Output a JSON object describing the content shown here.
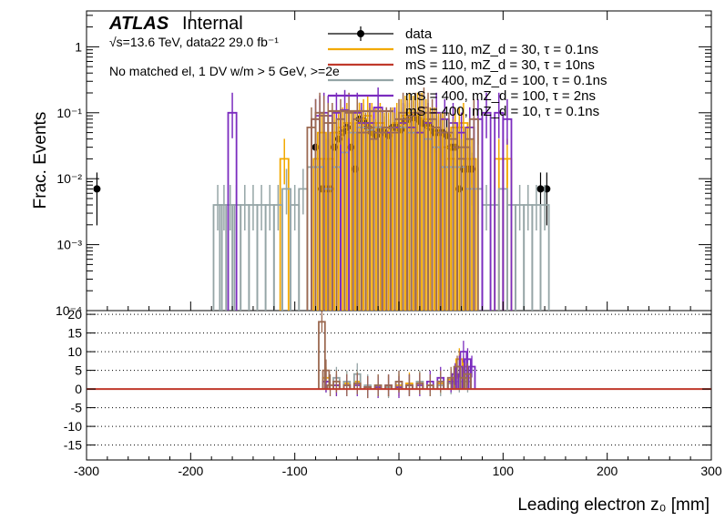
{
  "colors": {
    "data": "#000000",
    "mS110_mZd30_tau0p1": "#f2a900",
    "mS110_mZd30_tau10": "#c0392b",
    "mS400_mZd100_tau0p1": "#95a5a6",
    "mS400_mZd100_tau2": "#7b2cbf",
    "mS400_mZd10_tau0p1": "#9c6a52"
  },
  "annotations": {
    "atlas": "ATLAS",
    "internal": "Internal",
    "energy": "√s=13.6 TeV, data22 29.0 fb⁻¹",
    "selection": "No matched el, 1 DV w/m > 5 GeV, >=2e"
  },
  "chart_data": [
    {
      "type": "line",
      "panel": "main",
      "ylabel": "Frac. Events",
      "yscale": "log",
      "xlim": [
        -300,
        300
      ],
      "ylim": [
        0.0001,
        3.5
      ],
      "y_ticks": [
        "10⁻⁴",
        "10⁻³",
        "10⁻²",
        "10⁻¹",
        "1"
      ],
      "legend_position": "top-right",
      "series": [
        {
          "name": "data",
          "key": "data",
          "style": "points",
          "x": [
            -290,
            -80,
            -74,
            -70,
            -66,
            -62,
            -58,
            -54,
            -50,
            -46,
            -42,
            -38,
            -34,
            -30,
            -26,
            -22,
            -18,
            -14,
            -10,
            -6,
            -2,
            2,
            6,
            10,
            14,
            18,
            22,
            26,
            30,
            34,
            38,
            42,
            46,
            50,
            54,
            58,
            62,
            66,
            70,
            136,
            142
          ],
          "y": [
            0.007,
            0.03,
            0.007,
            0.007,
            0.007,
            0.03,
            0.04,
            0.05,
            0.06,
            0.03,
            0.014,
            0.08,
            0.075,
            0.06,
            0.05,
            0.045,
            0.055,
            0.05,
            0.045,
            0.06,
            0.06,
            0.055,
            0.075,
            0.08,
            0.085,
            0.08,
            0.07,
            0.065,
            0.06,
            0.05,
            0.05,
            0.05,
            0.045,
            0.03,
            0.03,
            0.007,
            0.014,
            0.014,
            0.014,
            0.007,
            0.007
          ]
        },
        {
          "name": "mS = 110, mZ_d = 30, τ = 0.1ns",
          "key": "mS110_mZd30_tau0p1",
          "style": "hist",
          "x": [
            -110,
            -78,
            -74,
            -70,
            -66,
            -62,
            -58,
            -54,
            -50,
            -46,
            -42,
            -38,
            -34,
            -30,
            -26,
            -22,
            -18,
            -14,
            -10,
            -6,
            -2,
            2,
            6,
            10,
            14,
            18,
            22,
            26,
            30,
            34,
            38,
            42,
            46,
            50,
            54,
            58,
            62,
            66,
            70,
            96,
            100,
            104
          ],
          "y": [
            0.02,
            0.02,
            0.05,
            0.02,
            0.02,
            0.05,
            0.05,
            0.06,
            0.07,
            0.05,
            0.05,
            0.07,
            0.08,
            0.09,
            0.07,
            0.06,
            0.07,
            0.05,
            0.05,
            0.06,
            0.07,
            0.08,
            0.09,
            0.1,
            0.09,
            0.1,
            0.1,
            0.08,
            0.06,
            0.06,
            0.05,
            0.05,
            0.03,
            0.02,
            0.06,
            0.06,
            0.07,
            0.02,
            0.02,
            0.02,
            0.02,
            0.02
          ]
        },
        {
          "name": "mS = 110, mZ_d = 30, τ = 10ns",
          "key": "mS110_mZd30_tau10",
          "style": "hist",
          "x": [],
          "y": []
        },
        {
          "name": "mS = 400, mZ_d = 100, τ = 0.1ns",
          "key": "mS400_mZd100_tau0p1",
          "style": "hist",
          "x": [
            -174,
            -168,
            -162,
            -156,
            -148,
            -140,
            -132,
            -124,
            -116,
            -108,
            -100,
            -92,
            -84,
            -76,
            -68,
            -60,
            -52,
            -44,
            -36,
            -28,
            -20,
            -12,
            -4,
            4,
            12,
            20,
            28,
            36,
            44,
            52,
            60,
            68,
            76,
            84,
            92,
            100,
            108,
            116,
            124,
            132,
            140
          ],
          "y": [
            0.004,
            0.004,
            0.004,
            0.004,
            0.004,
            0.004,
            0.004,
            0.004,
            0.004,
            0.007,
            0.004,
            0.007,
            0.015,
            0.015,
            0.007,
            0.015,
            0.025,
            0.05,
            0.06,
            0.055,
            0.06,
            0.06,
            0.06,
            0.06,
            0.05,
            0.05,
            0.04,
            0.03,
            0.015,
            0.015,
            0.015,
            0.007,
            0.007,
            0.004,
            0.004,
            0.007,
            0.004,
            0.004,
            0.004,
            0.004,
            0.004
          ]
        },
        {
          "name": "mS = 400, mZ_d = 100, τ = 2ns",
          "key": "mS400_mZd100_tau2",
          "style": "hist",
          "x": [
            -160,
            -80,
            -76,
            -72,
            -68,
            -60,
            -52,
            -40,
            -36,
            -28,
            -20,
            -12,
            -4,
            4,
            12,
            20,
            28,
            36,
            44,
            52,
            60,
            68,
            76,
            84,
            96,
            104
          ],
          "y": [
            0.1,
            0.08,
            0.09,
            0.1,
            0.09,
            0.1,
            0.11,
            0.1,
            0.07,
            0.07,
            0.12,
            0.05,
            0.06,
            0.07,
            0.06,
            0.05,
            0.07,
            0.1,
            0.08,
            0.07,
            0.05,
            0.06,
            0.08,
            0.1,
            0.1,
            0.08
          ]
        },
        {
          "name": "mS = 400, mZ_d = 10, τ = 0.1ns",
          "key": "mS400_mZd10_tau0p1",
          "style": "hist",
          "x": [
            -84,
            -80,
            -76,
            -72,
            -68,
            -64,
            -56,
            -48,
            -40,
            -36,
            -32,
            -28,
            -24,
            -20,
            -16,
            -12,
            -8,
            -4,
            0,
            4,
            8,
            12,
            16,
            20,
            24,
            28,
            32,
            36,
            40,
            44,
            48,
            52,
            56,
            60,
            64,
            68,
            72
          ],
          "y": [
            0.06,
            0.08,
            0.1,
            0.09,
            0.07,
            0.07,
            0.08,
            0.1,
            0.08,
            0.05,
            0.05,
            0.06,
            0.04,
            0.05,
            0.05,
            0.06,
            0.06,
            0.05,
            0.08,
            0.1,
            0.08,
            0.09,
            0.1,
            0.1,
            0.12,
            0.1,
            0.08,
            0.06,
            0.05,
            0.05,
            0.05,
            0.04,
            0.03,
            0.02,
            0.03,
            0.04,
            0.08
          ]
        }
      ]
    },
    {
      "type": "line",
      "panel": "ratio",
      "xlabel": "Leading electron z₀ [mm]",
      "xlim": [
        -300,
        300
      ],
      "ylim": [
        -19,
        21
      ],
      "x_ticks": [
        -300,
        -200,
        -100,
        0,
        100,
        200,
        300
      ],
      "y_ticks": [
        20,
        15,
        10,
        5,
        0,
        -5,
        -10,
        -15
      ],
      "grid": "horizontal dotted",
      "series": [
        {
          "key": "mS110_mZd30_tau0p1",
          "x": [
            -70,
            -60,
            -50,
            -40,
            -30,
            -20,
            -10,
            0,
            10,
            20,
            30,
            40,
            50,
            54,
            58,
            62,
            66
          ],
          "y": [
            3,
            1,
            1.5,
            2,
            0.5,
            1,
            0.8,
            1,
            1.5,
            2,
            1,
            1.5,
            2.5,
            3,
            8,
            6,
            3
          ]
        },
        {
          "key": "mS400_mZd100_tau0p1",
          "x": [
            -70,
            -60,
            -50,
            -40,
            -30,
            -20,
            -10,
            0,
            10,
            20,
            30,
            40,
            50,
            58,
            66
          ],
          "y": [
            2,
            3,
            2,
            4,
            1,
            1,
            0.5,
            2,
            1,
            2,
            1,
            1,
            1.5,
            2,
            2
          ]
        },
        {
          "key": "mS400_mZd100_tau2",
          "x": [
            -70,
            -60,
            -50,
            -40,
            -30,
            -20,
            -10,
            0,
            10,
            20,
            30,
            40,
            50,
            54,
            58,
            62,
            66,
            70
          ],
          "y": [
            2,
            1,
            1,
            1,
            0.5,
            0.5,
            1,
            0.5,
            1,
            1,
            2,
            3,
            2,
            4,
            6,
            10,
            8,
            6
          ]
        },
        {
          "key": "mS400_mZd10_tau0p1",
          "x": [
            -74,
            -70,
            -66,
            -60,
            -50,
            -40,
            -30,
            -20,
            -10,
            0,
            10,
            20,
            30,
            40,
            50,
            56,
            62,
            66
          ],
          "y": [
            18,
            5,
            1,
            2,
            1,
            1.5,
            0.5,
            1,
            1,
            2,
            1,
            1.5,
            1,
            2,
            3,
            6,
            3,
            4
          ]
        },
        {
          "key": "mS110_mZd30_tau10",
          "x": [
            -300,
            300
          ],
          "y": [
            0,
            0
          ]
        }
      ]
    }
  ]
}
